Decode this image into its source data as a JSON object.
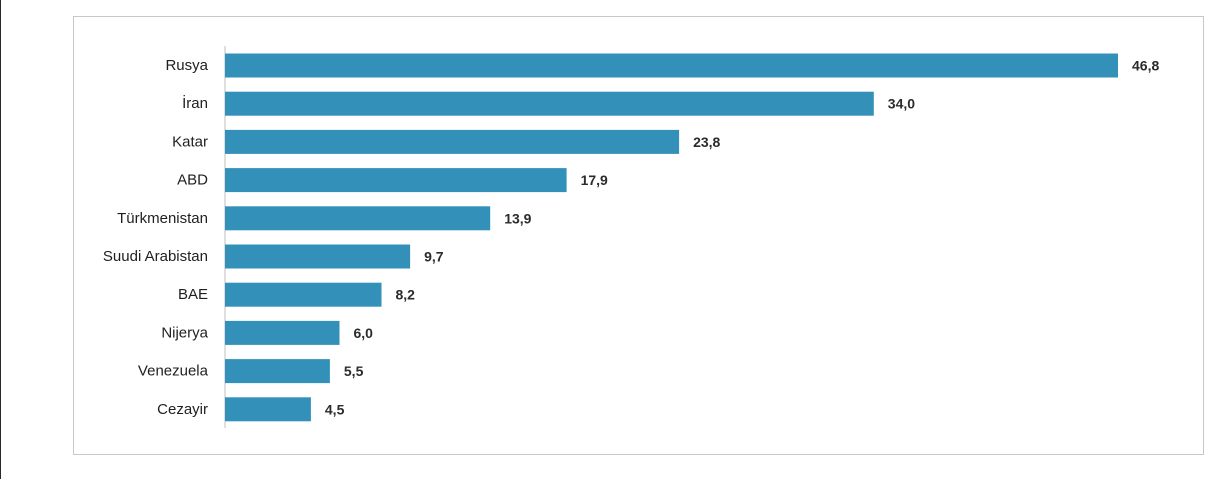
{
  "chart_data": {
    "type": "bar",
    "orientation": "horizontal",
    "categories": [
      "Rusya",
      "İran",
      "Katar",
      "ABD",
      "Türkmenistan",
      "Suudi Arabistan",
      "BAE",
      "Nijerya",
      "Venezuela",
      "Cezayir"
    ],
    "values": [
      46.8,
      34.0,
      23.8,
      17.9,
      13.9,
      9.7,
      8.2,
      6.0,
      5.5,
      4.5
    ],
    "value_labels": [
      "46,8",
      "34,0",
      "23,8",
      "17,9",
      "13,9",
      "9,7",
      "8,2",
      "6,0",
      "5,5",
      "4,5"
    ],
    "title": "",
    "xlabel": "",
    "ylabel": "",
    "xlim": [
      0,
      46.8
    ],
    "grid": false,
    "legend": "none",
    "bar_color": "#3391b9",
    "axis_color": "#bfbfbf"
  }
}
